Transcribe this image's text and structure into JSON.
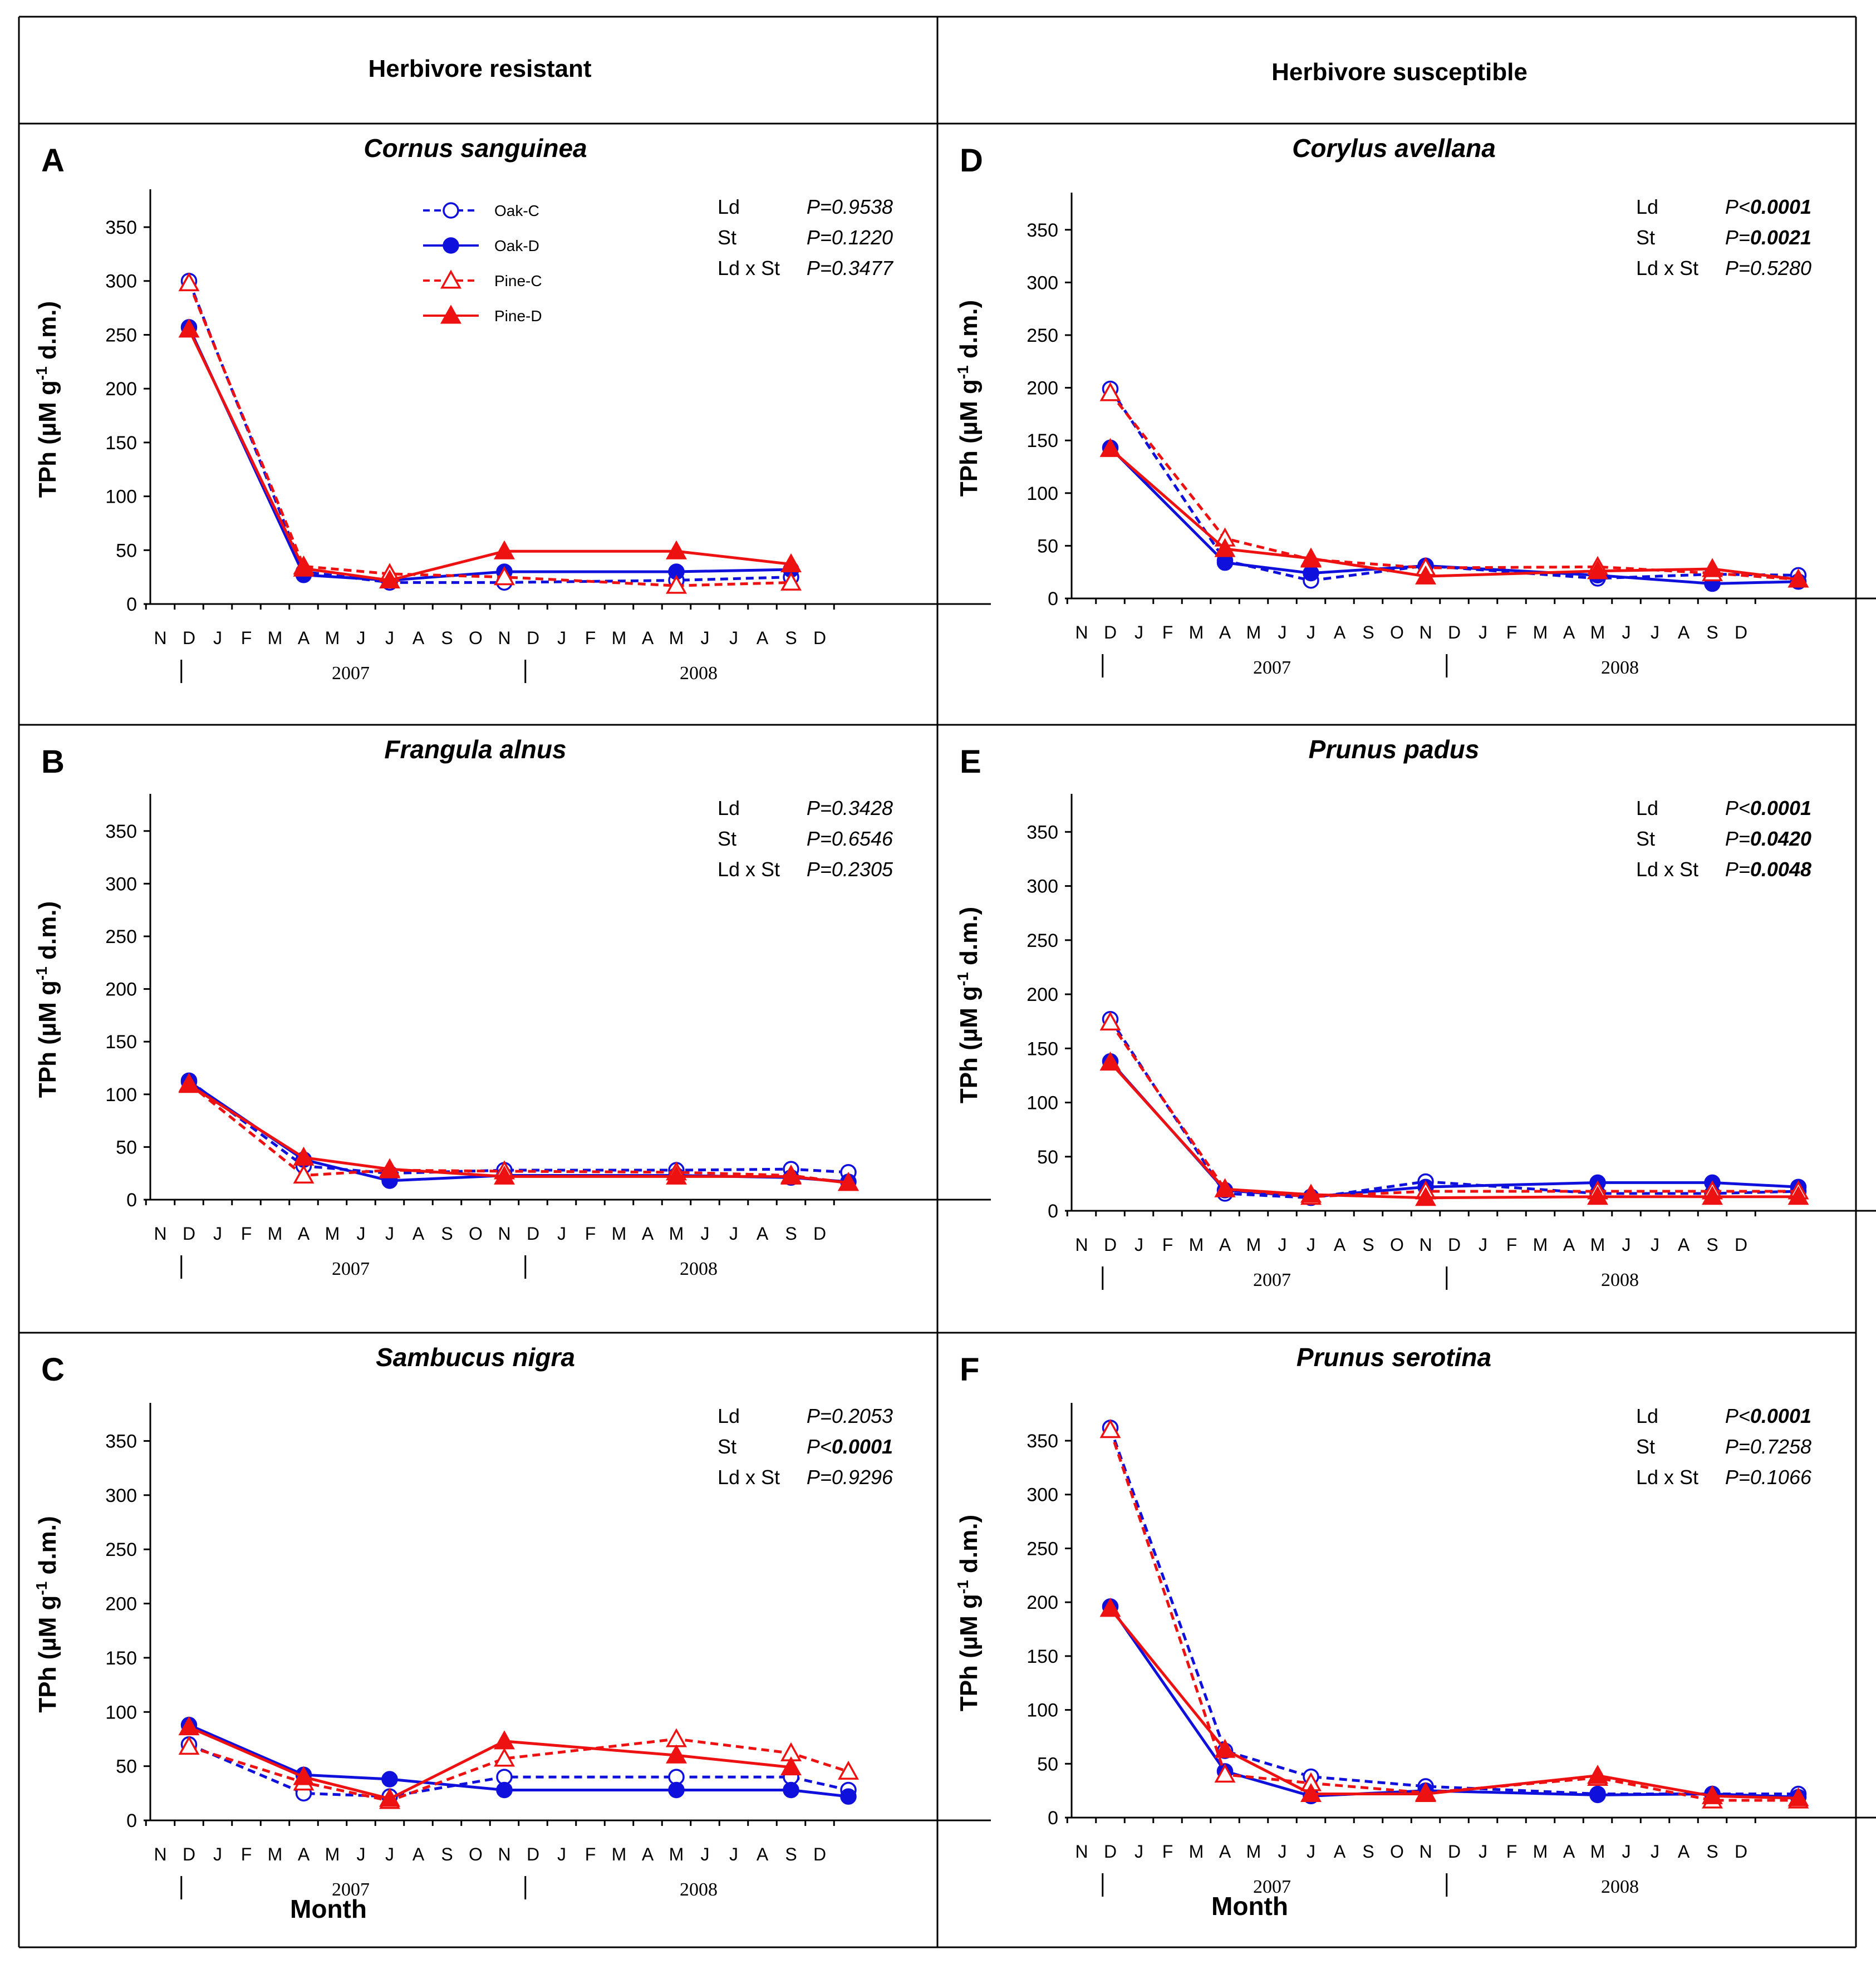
{
  "header": {
    "left_title": "Herbivore resistant",
    "right_title": "Herbivore susceptible"
  },
  "colors": {
    "oak": "#1010dd",
    "pine": "#ee1111"
  },
  "axis": {
    "ylabel": "TPh (µM g",
    "ylabel_sup": "-1",
    "ylabel_tail": " d.m.)",
    "xlabel": "Month",
    "yticks": [
      0,
      50,
      100,
      150,
      200,
      250,
      300,
      350
    ],
    "months": [
      "N",
      "D",
      "J",
      "F",
      "M",
      "A",
      "M",
      "J",
      "J",
      "A",
      "S",
      "O",
      "N",
      "D",
      "J",
      "F",
      "M",
      "A",
      "M",
      "J",
      "J",
      "A",
      "S",
      "D"
    ],
    "years": [
      "2007",
      "2008"
    ]
  },
  "legend": [
    {
      "key": "oakC",
      "label": "Oak-C"
    },
    {
      "key": "oakD",
      "label": "Oak-D"
    },
    {
      "key": "pineC",
      "label": "Pine-C"
    },
    {
      "key": "pineD",
      "label": "Pine-D"
    }
  ],
  "chart_data": [
    {
      "type": "line",
      "letter": "A",
      "title": "Cornus sanguinea",
      "ylim": [
        0,
        380
      ],
      "xlabel": "",
      "ylabel": "TPh (µM g-1 d.m.)",
      "stats": [
        {
          "label": "Ld",
          "prefix": "P=",
          "value": "0.9538",
          "bold": false
        },
        {
          "label": "St",
          "prefix": "P=",
          "value": "0.1220",
          "bold": false
        },
        {
          "label": "Ld x St",
          "prefix": "P=",
          "value": "0.3477",
          "bold": false
        }
      ],
      "series": [
        {
          "name": "Oak-C",
          "key": "oakC",
          "x": [
            1,
            5,
            8,
            12,
            18,
            22
          ],
          "values": [
            300,
            30,
            20,
            20,
            22,
            25
          ]
        },
        {
          "name": "Oak-D",
          "key": "oakD",
          "x": [
            1,
            5,
            8,
            12,
            18,
            22
          ],
          "values": [
            257,
            27,
            22,
            30,
            30,
            32
          ]
        },
        {
          "name": "Pine-C",
          "key": "pineC",
          "x": [
            1,
            5,
            8,
            12,
            18,
            22
          ],
          "values": [
            298,
            35,
            28,
            25,
            17,
            20
          ]
        },
        {
          "name": "Pine-D",
          "key": "pineD",
          "x": [
            1,
            5,
            8,
            12,
            18,
            22
          ],
          "values": [
            255,
            33,
            22,
            49,
            49,
            37
          ]
        }
      ]
    },
    {
      "type": "line",
      "letter": "B",
      "title": "Frangula alnus",
      "ylim": [
        0,
        380
      ],
      "xlabel": "",
      "ylabel": "TPh (µM g-1 d.m.)",
      "stats": [
        {
          "label": "Ld",
          "prefix": "P=",
          "value": "0.3428",
          "bold": false
        },
        {
          "label": "St",
          "prefix": "P=",
          "value": "0.6546",
          "bold": false
        },
        {
          "label": "Ld x St",
          "prefix": "P=",
          "value": "0.2305",
          "bold": false
        }
      ],
      "series": [
        {
          "name": "Oak-C",
          "key": "oakC",
          "x": [
            1,
            5,
            8,
            12,
            18,
            22,
            24
          ],
          "values": [
            113,
            32,
            25,
            28,
            28,
            29,
            26
          ]
        },
        {
          "name": "Oak-D",
          "key": "oakD",
          "x": [
            1,
            5,
            8,
            12,
            18,
            22,
            24
          ],
          "values": [
            112,
            38,
            18,
            23,
            23,
            21,
            17
          ]
        },
        {
          "name": "Pine-C",
          "key": "pineC",
          "x": [
            1,
            5,
            8,
            12,
            18,
            22,
            24
          ],
          "values": [
            110,
            23,
            28,
            27,
            26,
            23,
            16
          ]
        },
        {
          "name": "Pine-D",
          "key": "pineD",
          "x": [
            1,
            5,
            8,
            12,
            18,
            22,
            24
          ],
          "values": [
            109,
            40,
            29,
            22,
            22,
            22,
            16
          ]
        }
      ]
    },
    {
      "type": "line",
      "letter": "C",
      "title": "Sambucus nigra",
      "ylim": [
        0,
        380
      ],
      "xlabel": "Month",
      "ylabel": "TPh (µM g-1 d.m.)",
      "stats": [
        {
          "label": "Ld",
          "prefix": "P=",
          "value": "0.2053",
          "bold": false
        },
        {
          "label": "St",
          "prefix": "P<",
          "value": "0.0001",
          "bold": true
        },
        {
          "label": "Ld x St",
          "prefix": "P=",
          "value": "0.9296",
          "bold": false
        }
      ],
      "series": [
        {
          "name": "Oak-C",
          "key": "oakC",
          "x": [
            1,
            5,
            8,
            12,
            18,
            22,
            24
          ],
          "values": [
            70,
            25,
            22,
            40,
            40,
            40,
            28
          ]
        },
        {
          "name": "Oak-D",
          "key": "oakD",
          "x": [
            1,
            5,
            8,
            12,
            18,
            22,
            24
          ],
          "values": [
            88,
            42,
            38,
            28,
            28,
            28,
            22
          ]
        },
        {
          "name": "Pine-C",
          "key": "pineC",
          "x": [
            1,
            5,
            8,
            12,
            18,
            22,
            24
          ],
          "values": [
            68,
            35,
            18,
            57,
            75,
            62,
            45
          ]
        },
        {
          "name": "Pine-D",
          "key": "pineD",
          "x": [
            1,
            5,
            8,
            12,
            18,
            22
          ],
          "values": [
            86,
            40,
            20,
            73,
            60,
            49
          ]
        }
      ]
    },
    {
      "type": "line",
      "letter": "D",
      "title": "Corylus avellana",
      "ylim": [
        0,
        380
      ],
      "xlabel": "",
      "ylabel": "TPh (µM g-1 d.m.)",
      "stats": [
        {
          "label": "Ld",
          "prefix": "P<",
          "value": "0.0001",
          "bold": true
        },
        {
          "label": "St",
          "prefix": "P=",
          "value": "0.0021",
          "bold": true
        },
        {
          "label": "Ld x St",
          "prefix": "P=",
          "value": "0.5280",
          "bold": false
        }
      ],
      "series": [
        {
          "name": "Oak-C",
          "key": "oakC",
          "x": [
            1,
            5,
            8,
            12,
            18,
            22,
            25
          ],
          "values": [
            199,
            36,
            17,
            31,
            19,
            23,
            22
          ]
        },
        {
          "name": "Oak-D",
          "key": "oakD",
          "x": [
            1,
            5,
            8,
            12,
            18,
            22,
            25
          ],
          "values": [
            143,
            34,
            24,
            31,
            22,
            14,
            16
          ]
        },
        {
          "name": "Pine-C",
          "key": "pineC",
          "x": [
            1,
            5,
            8,
            12,
            18,
            22,
            25
          ],
          "values": [
            195,
            57,
            37,
            29,
            30,
            24,
            18
          ]
        },
        {
          "name": "Pine-D",
          "key": "pineD",
          "x": [
            1,
            5,
            8,
            12,
            18,
            22,
            25
          ],
          "values": [
            142,
            47,
            38,
            21,
            26,
            28,
            18
          ]
        }
      ]
    },
    {
      "type": "line",
      "letter": "E",
      "title": "Prunus padus",
      "ylim": [
        0,
        380
      ],
      "xlabel": "",
      "ylabel": "TPh (µM g-1 d.m.)",
      "stats": [
        {
          "label": "Ld",
          "prefix": "P<",
          "value": "0.0001",
          "bold": true
        },
        {
          "label": "St",
          "prefix": "P=",
          "value": "0.0420",
          "bold": true
        },
        {
          "label": "Ld x St",
          "prefix": "P=",
          "value": "0.0048",
          "bold": true
        }
      ],
      "series": [
        {
          "name": "Oak-C",
          "key": "oakC",
          "x": [
            1,
            5,
            8,
            12,
            18,
            22,
            25
          ],
          "values": [
            177,
            16,
            12,
            27,
            16,
            16,
            18
          ]
        },
        {
          "name": "Oak-D",
          "key": "oakD",
          "x": [
            1,
            5,
            8,
            12,
            18,
            22,
            25
          ],
          "values": [
            138,
            19,
            13,
            22,
            26,
            26,
            22
          ]
        },
        {
          "name": "Pine-C",
          "key": "pineC",
          "x": [
            1,
            5,
            8,
            12,
            18,
            22,
            25
          ],
          "values": [
            174,
            20,
            13,
            18,
            18,
            18,
            18
          ]
        },
        {
          "name": "Pine-D",
          "key": "pineD",
          "x": [
            1,
            5,
            8,
            12,
            18,
            22,
            25
          ],
          "values": [
            137,
            20,
            15,
            12,
            13,
            13,
            13
          ]
        }
      ]
    },
    {
      "type": "line",
      "letter": "F",
      "title": "Prunus serotina",
      "ylim": [
        0,
        380
      ],
      "xlabel": "Month",
      "ylabel": "TPh (µM g-1 d.m.)",
      "stats": [
        {
          "label": "Ld",
          "prefix": "P<",
          "value": "0.0001",
          "bold": true
        },
        {
          "label": "St",
          "prefix": "P=",
          "value": "0.7258",
          "bold": false
        },
        {
          "label": "Ld x St",
          "prefix": "P=",
          "value": "0.1066",
          "bold": false
        }
      ],
      "series": [
        {
          "name": "Oak-C",
          "key": "oakC",
          "x": [
            1,
            5,
            8,
            12,
            18,
            22,
            25
          ],
          "values": [
            362,
            62,
            38,
            29,
            22,
            22,
            22
          ]
        },
        {
          "name": "Oak-D",
          "key": "oakD",
          "x": [
            1,
            5,
            8,
            12,
            18,
            22,
            25
          ],
          "values": [
            196,
            43,
            20,
            25,
            21,
            22,
            19
          ]
        },
        {
          "name": "Pine-C",
          "key": "pineC",
          "x": [
            1,
            5,
            8,
            12,
            18,
            22,
            25
          ],
          "values": [
            360,
            40,
            32,
            23,
            37,
            16,
            16
          ]
        },
        {
          "name": "Pine-D",
          "key": "pineD",
          "x": [
            1,
            5,
            8,
            12,
            18,
            22,
            25
          ],
          "values": [
            194,
            63,
            22,
            22,
            39,
            20,
            18
          ]
        }
      ]
    }
  ]
}
